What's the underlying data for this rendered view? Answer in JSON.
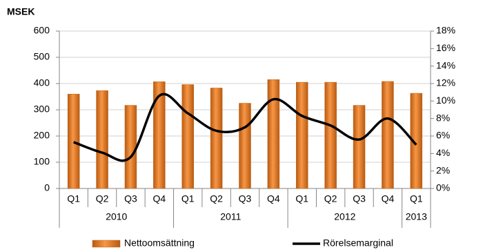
{
  "chart_data": {
    "type": "bar",
    "title": "MSEK",
    "categories": [
      "Q1",
      "Q2",
      "Q3",
      "Q4",
      "Q1",
      "Q2",
      "Q3",
      "Q4",
      "Q1",
      "Q2",
      "Q3",
      "Q4",
      "Q1"
    ],
    "years": [
      "2010",
      null,
      null,
      null,
      "2011",
      null,
      null,
      null,
      "2012",
      null,
      null,
      null,
      "2013"
    ],
    "series": [
      {
        "name": "Nettoomsättning",
        "type": "bar",
        "color": "#f79646",
        "values": [
          360,
          373,
          317,
          407,
          396,
          383,
          325,
          415,
          405,
          405,
          317,
          408,
          363
        ]
      },
      {
        "name": "Rörelsemarginal",
        "type": "line",
        "axis": "y2",
        "color": "#000000",
        "values": [
          5.3,
          4.1,
          3.6,
          10.6,
          8.6,
          6.6,
          7.0,
          10.2,
          8.3,
          7.2,
          5.6,
          8.0,
          5.0
        ]
      }
    ],
    "ylim": [
      0,
      600
    ],
    "yticks": [
      0,
      100,
      200,
      300,
      400,
      500,
      600
    ],
    "y2lim": [
      0,
      18
    ],
    "y2ticks": [
      {
        "value": 0,
        "label": "0%"
      },
      {
        "value": 2,
        "label": "2%"
      },
      {
        "value": 4,
        "label": "4%"
      },
      {
        "value": 6,
        "label": "6%"
      },
      {
        "value": 8,
        "label": "8%"
      },
      {
        "value": 10,
        "label": "10%"
      },
      {
        "value": 12,
        "label": "12%"
      },
      {
        "value": 14,
        "label": "14%"
      },
      {
        "value": 16,
        "label": "16%"
      },
      {
        "value": 18,
        "label": "18%"
      }
    ],
    "grid": true,
    "legend": "bottom"
  }
}
